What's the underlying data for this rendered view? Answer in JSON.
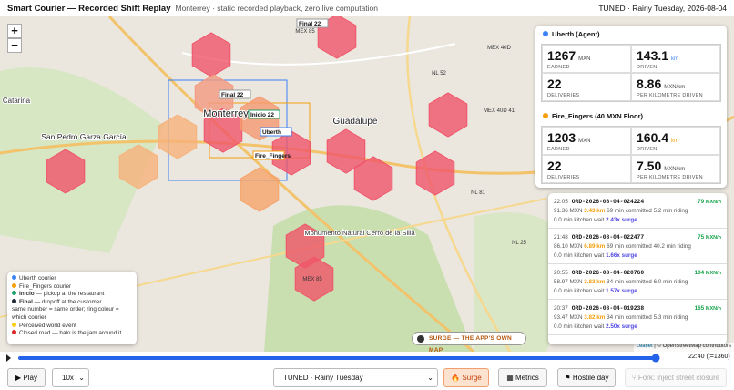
{
  "header": {
    "title": "Smart Courier — Recorded Shift Replay",
    "subtitle": "Monterrey · static recorded playback, zero live computation",
    "status": "TUNED · Rainy Tuesday, 2026-08-04"
  },
  "map": {
    "zoom_in": "+",
    "zoom_out": "−",
    "places": [
      "Catarina",
      "San Pedro Garza García",
      "Monterrey",
      "Guadalupe",
      "Monumento Natural Cerro de la Silla",
      "Juárez"
    ],
    "roads": [
      "MEX 40D",
      "MEX 85",
      "NL 52",
      "NL 81",
      "NL 25",
      "MEX 40D 41",
      "MEX 85"
    ],
    "markers": [
      "Final 22",
      "Final 22",
      "Inicio 22",
      "Uberth",
      "Fire_Fingers"
    ],
    "surge_badge": "SURGE — THE APP'S OWN MAP",
    "attribution": [
      "Leaflet",
      "© OpenStreetMap contributors"
    ]
  },
  "couriers": [
    {
      "name": "Uberth (Agent)",
      "color": "#3b82f6",
      "stats": [
        {
          "value": "1267",
          "unit": "MXN",
          "label": "EARNED"
        },
        {
          "value": "143.1",
          "unit": "km",
          "label": "DRIVEN"
        },
        {
          "value": "22",
          "unit": "",
          "label": "DELIVERIES"
        },
        {
          "value": "8.86",
          "unit": "MXN/km",
          "label": "PER KILOMETRE DRIVEN"
        }
      ]
    },
    {
      "name": "Fire_Fingers (40 MXN Floor)",
      "color": "#f59e0b",
      "stats": [
        {
          "value": "1203",
          "unit": "MXN",
          "label": "EARNED"
        },
        {
          "value": "160.4",
          "unit": "km",
          "label": "DRIVEN"
        },
        {
          "value": "22",
          "unit": "",
          "label": "DELIVERIES"
        },
        {
          "value": "7.50",
          "unit": "MXN/km",
          "label": "PER KILOMETRE DRIVEN"
        }
      ]
    }
  ],
  "orders": [
    {
      "time": "22:05",
      "id": "ORD-2026-08-04-024224",
      "rate": "79",
      "rate_unit": "MXN/h",
      "mxn": "91.36 MXN",
      "km": "3.43 km",
      "committed": "69 min committed",
      "riding": "5.2 min riding",
      "wait": "0.0 min kitchen wait",
      "surge": "2.43x surge"
    },
    {
      "time": "21:48",
      "id": "ORD-2026-08-04-022477",
      "rate": "75",
      "rate_unit": "MXN/h",
      "mxn": "86.10 MXN",
      "km": "6.89 km",
      "committed": "69 min committed",
      "riding": "40.2 min riding",
      "wait": "0.0 min kitchen wait",
      "surge": "1.66x surge"
    },
    {
      "time": "20:55",
      "id": "ORD-2026-08-04-020760",
      "rate": "104",
      "rate_unit": "MXN/h",
      "mxn": "58.97 MXN",
      "km": "3.83 km",
      "committed": "34 min committed",
      "riding": "6.0 min riding",
      "wait": "0.0 min kitchen wait",
      "surge": "1.57x surge"
    },
    {
      "time": "20:37",
      "id": "ORD-2026-08-04-019238",
      "rate": "165",
      "rate_unit": "MXN/h",
      "mxn": "93.47 MXN",
      "km": "3.82 km",
      "committed": "34 min committed",
      "riding": "5.3 min riding",
      "wait": "0.0 min kitchen wait",
      "surge": "2.50x surge"
    }
  ],
  "legend": [
    {
      "term": "",
      "text": "Uberth courier",
      "color": "#3b82f6"
    },
    {
      "term": "",
      "text": "Fire_Fingers courier",
      "color": "#f59e0b"
    },
    {
      "term": "Inicio",
      "text": " — pickup at the restaurant",
      "color": "#22a06b"
    },
    {
      "term": "Final",
      "text": " — dropoff at the customer",
      "color": "#1f2937"
    },
    {
      "term": "",
      "text": "same number = same order; ring colour = which courier",
      "color": ""
    },
    {
      "term": "",
      "text": "Perceived world event",
      "color": "#facc15"
    },
    {
      "term": "",
      "text": "Closed road — halo is the jam around it",
      "color": "#dc2626"
    }
  ],
  "timeline": {
    "time": "22:40 (t=1360)"
  },
  "controls": {
    "play": "Play",
    "speed": "10x",
    "scenario": "TUNED · Rainy Tuesday",
    "surge": "Surge",
    "metrics": "Metrics",
    "hostile": "Hostile day",
    "fork": "Fork: inject street closure"
  }
}
